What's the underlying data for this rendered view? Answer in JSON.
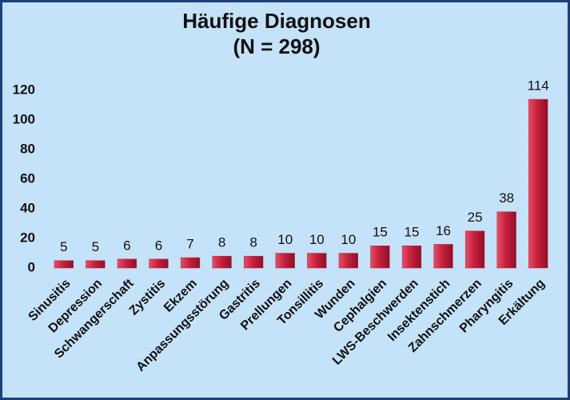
{
  "chart_data": {
    "type": "bar",
    "title": "Häufige Diagnosen",
    "subtitle": "(N = 298)",
    "categories": [
      "Sinusitis",
      "Depression",
      "Schwangerschaft",
      "Zystitis",
      "Ekzem",
      "Anpassungsstörung",
      "Gastritis",
      "Prellungen",
      "Tonsillitis",
      "Wunden",
      "Cephalgien",
      "LWS-Beschwerden",
      "Insektenstich",
      "Zahnschmerzen",
      "Pharyngitis",
      "Erkältung"
    ],
    "values": [
      5,
      5,
      6,
      6,
      7,
      8,
      8,
      10,
      10,
      10,
      15,
      15,
      16,
      25,
      38,
      114
    ],
    "color": "#c8203c",
    "ylim": [
      0,
      120
    ],
    "yticks": [
      0,
      20,
      40,
      60,
      80,
      100,
      120
    ],
    "grid": false
  }
}
